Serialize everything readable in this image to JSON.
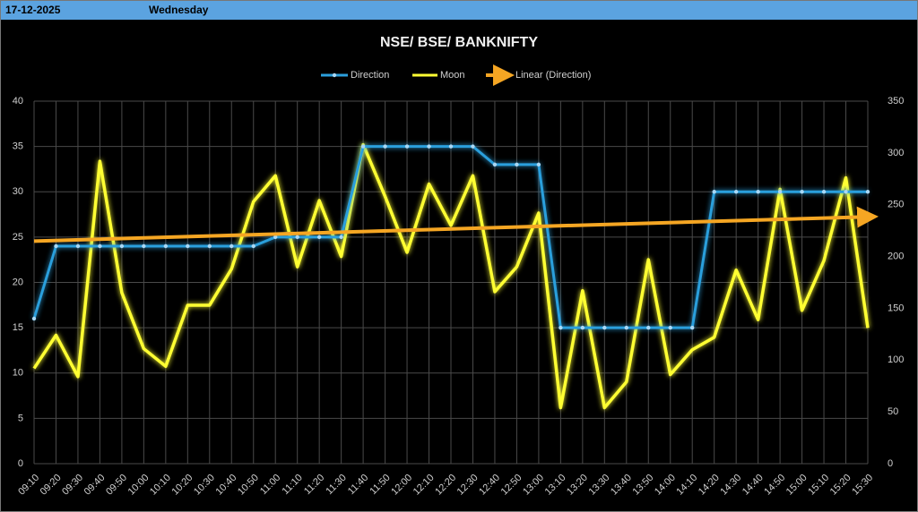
{
  "header": {
    "date": "17-12-2025",
    "day": "Wednesday"
  },
  "chart_data": {
    "type": "line",
    "title": "NSE/ BSE/ BANKNIFTY",
    "categories": [
      "09:10",
      "09:20",
      "09:30",
      "09:40",
      "09:50",
      "10:00",
      "10:10",
      "10:20",
      "10:30",
      "10:40",
      "10:50",
      "11:00",
      "11:10",
      "11:20",
      "11:30",
      "11:40",
      "11:50",
      "12:00",
      "12:10",
      "12:20",
      "12:30",
      "12:40",
      "12:50",
      "13:00",
      "13:10",
      "13:20",
      "13:30",
      "13:40",
      "13:50",
      "14:00",
      "14:10",
      "14:20",
      "14:30",
      "14:40",
      "14:50",
      "15:00",
      "15:10",
      "15:20",
      "15:30"
    ],
    "series": [
      {
        "name": "Direction",
        "color": "#2b9fdc",
        "axis": "y",
        "values": [
          16,
          24,
          24,
          24,
          24,
          24,
          24,
          24,
          24,
          24,
          24,
          25,
          25,
          25,
          25,
          35,
          35,
          35,
          35,
          35,
          35,
          33,
          33,
          33,
          15,
          15,
          15,
          15,
          15,
          15,
          15,
          30,
          30,
          30,
          30,
          30,
          30,
          30,
          30
        ]
      },
      {
        "name": "Moon",
        "color": "#ffff33",
        "axis": "y2",
        "values": [
          92,
          124,
          84,
          292,
          165,
          111,
          94,
          153,
          153,
          188,
          253,
          278,
          190,
          254,
          200,
          308,
          258,
          204,
          270,
          230,
          278,
          166,
          190,
          242,
          54,
          167,
          54,
          79,
          197,
          86,
          110,
          122,
          187,
          139,
          265,
          148,
          196,
          276,
          131
        ]
      }
    ],
    "trendline": {
      "name": "Linear (Direction)",
      "color": "#f5a623",
      "series": 0
    },
    "ylim": [
      0,
      40
    ],
    "yticks": [
      0,
      5,
      10,
      15,
      20,
      25,
      30,
      35,
      40
    ],
    "y2lim": [
      0,
      350
    ],
    "y2ticks": [
      0,
      50,
      100,
      150,
      200,
      250,
      300,
      350
    ],
    "grid": true
  }
}
